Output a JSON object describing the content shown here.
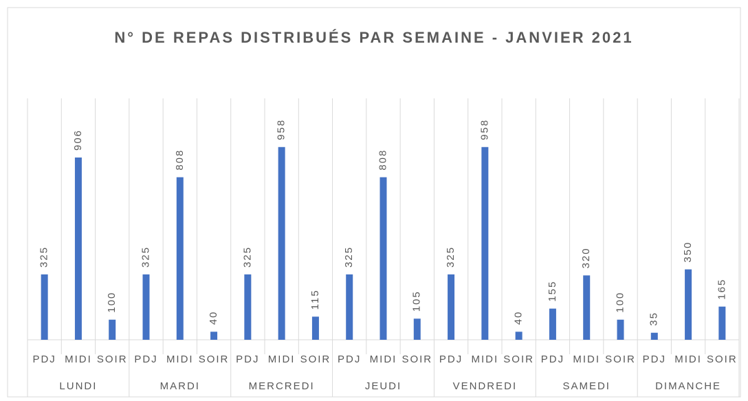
{
  "chart_data": {
    "type": "bar",
    "title": "N° DE REPAS DISTRIBUÉS PAR SEMAINE - JANVIER 2021",
    "categories": [
      "PDJ",
      "MIDI",
      "SOIR",
      "PDJ",
      "MIDI",
      "SOIR",
      "PDJ",
      "MIDI",
      "SOIR",
      "PDJ",
      "MIDI",
      "SOIR",
      "PDJ",
      "MIDI",
      "SOIR",
      "PDJ",
      "MIDI",
      "SOIR",
      "PDJ",
      "MIDI",
      "SOIR"
    ],
    "groups": [
      "LUNDI",
      "MARDI",
      "MERCREDI",
      "JEUDI",
      "VENDREDI",
      "SAMEDI",
      "DIMANCHE"
    ],
    "values": [
      325,
      906,
      100,
      325,
      808,
      40,
      325,
      958,
      115,
      325,
      808,
      105,
      325,
      958,
      40,
      155,
      320,
      100,
      35,
      350,
      165
    ],
    "color": "#4472c4",
    "ylim": [
      0,
      1200
    ]
  }
}
